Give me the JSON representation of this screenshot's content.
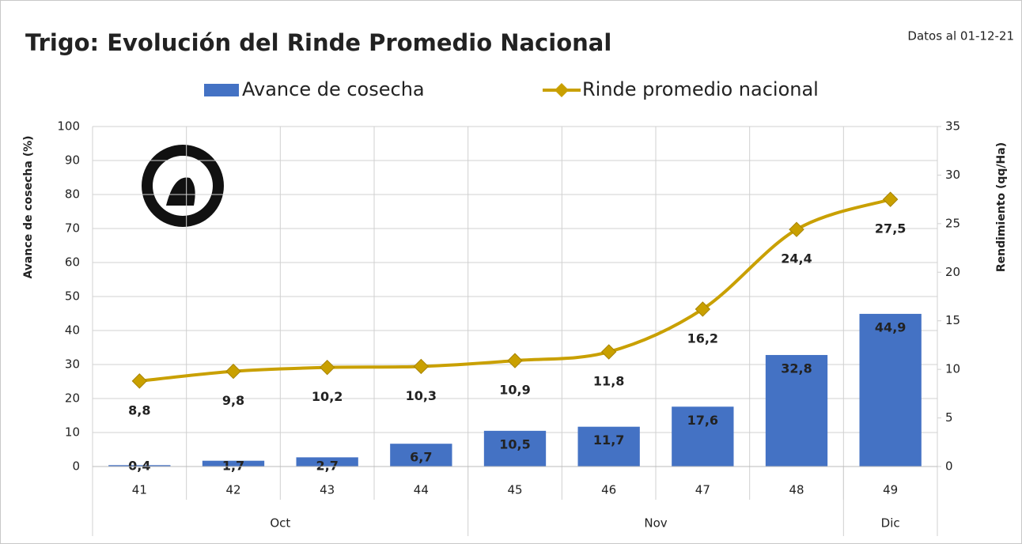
{
  "chart_data": {
    "type": "bar_line",
    "title": "Trigo: Evolución del Rinde Promedio Nacional",
    "subtitle": "Datos al 01-12-21",
    "y_label": "Avance de cosecha  (%)",
    "y2_label": "Rendimiento (qq/Ha)",
    "categories": [
      "41",
      "42",
      "43",
      "44",
      "45",
      "46",
      "47",
      "48",
      "49"
    ],
    "groups": [
      {
        "name": "Oct",
        "count": 4
      },
      {
        "name": "Nov",
        "count": 4
      },
      {
        "name": "Dic",
        "count": 1
      }
    ],
    "series": [
      {
        "name": "Avance de cosecha",
        "type": "bar",
        "color": "#4472c4",
        "values": [
          0.4,
          1.7,
          2.7,
          6.7,
          10.5,
          11.7,
          17.6,
          32.8,
          44.9
        ],
        "value_labels": [
          "0,4",
          "1,7",
          "2,7",
          "6,7",
          "10,5",
          "11,7",
          "17,6",
          "32,8",
          "44,9"
        ]
      },
      {
        "name": "Rinde promedio nacional",
        "type": "line",
        "axis": "y2",
        "color": "#c9a000",
        "values": [
          8.8,
          9.8,
          10.2,
          10.3,
          10.9,
          11.8,
          16.2,
          24.4,
          27.5
        ],
        "value_labels": [
          "8,8",
          "9,8",
          "10,2",
          "10,3",
          "10,9",
          "11,8",
          "16,2",
          "24,4",
          "27,5"
        ]
      }
    ],
    "ylim": [
      0,
      100
    ],
    "yticks": [
      0,
      10,
      20,
      30,
      40,
      50,
      60,
      70,
      80,
      90,
      100
    ],
    "y2lim": [
      0,
      35
    ],
    "y2ticks": [
      0,
      5,
      10,
      15,
      20,
      25,
      30,
      35
    ],
    "grid": true
  }
}
